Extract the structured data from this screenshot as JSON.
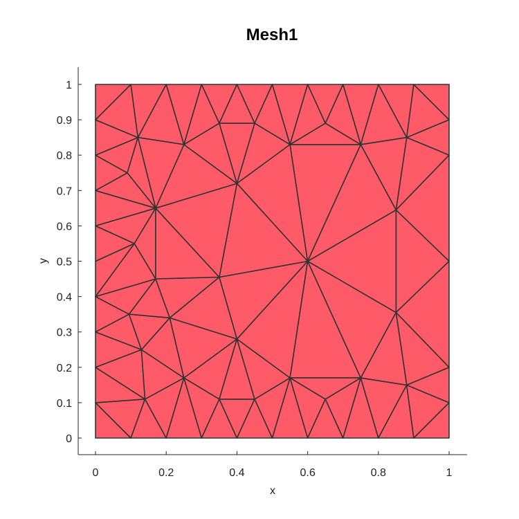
{
  "chart_data": {
    "type": "mesh",
    "title": "Mesh1",
    "xlabel": "x",
    "ylabel": "y",
    "xlim": [
      -0.05,
      1.05
    ],
    "ylim": [
      -0.05,
      1.05
    ],
    "xticks": [
      0,
      0.2,
      0.4,
      0.6,
      0.8,
      1
    ],
    "yticks": [
      0,
      0.1,
      0.2,
      0.3,
      0.4,
      0.5,
      0.6,
      0.7,
      0.8,
      0.9,
      1
    ],
    "xtick_labels": [
      "0",
      "0.2",
      "0.4",
      "0.6",
      "0.8",
      "1"
    ],
    "ytick_labels": [
      "0",
      "0.1",
      "0.2",
      "0.3",
      "0.4",
      "0.5",
      "0.6",
      "0.7",
      "0.8",
      "0.9",
      "1"
    ],
    "face_color": "#ff5a67",
    "edge_color": "#333333",
    "nodes": [
      [
        0,
        0
      ],
      [
        0.1,
        0
      ],
      [
        0.2,
        0
      ],
      [
        0.3,
        0
      ],
      [
        0.4,
        0
      ],
      [
        0.5,
        0
      ],
      [
        0.6,
        0
      ],
      [
        0.7,
        0
      ],
      [
        0.8,
        0
      ],
      [
        0.9,
        0
      ],
      [
        1,
        0
      ],
      [
        0,
        1
      ],
      [
        0.1,
        1
      ],
      [
        0.2,
        1
      ],
      [
        0.3,
        1
      ],
      [
        0.4,
        1
      ],
      [
        0.5,
        1
      ],
      [
        0.6,
        1
      ],
      [
        0.7,
        1
      ],
      [
        0.8,
        1
      ],
      [
        0.9,
        1
      ],
      [
        1,
        1
      ],
      [
        0,
        0.1
      ],
      [
        0,
        0.2
      ],
      [
        0,
        0.3
      ],
      [
        0,
        0.4
      ],
      [
        0,
        0.5
      ],
      [
        0,
        0.6
      ],
      [
        0,
        0.7
      ],
      [
        0,
        0.8
      ],
      [
        0,
        0.9
      ],
      [
        1,
        0.1
      ],
      [
        1,
        0.2
      ],
      [
        1,
        0.5
      ],
      [
        1,
        0.8
      ],
      [
        1,
        0.9
      ],
      [
        0.6,
        0.5
      ],
      [
        0.4,
        0.72
      ],
      [
        0.17,
        0.65
      ],
      [
        0.17,
        0.45
      ],
      [
        0.35,
        0.455
      ],
      [
        0.4,
        0.28
      ],
      [
        0.21,
        0.34
      ],
      [
        0.25,
        0.17
      ],
      [
        0.14,
        0.11
      ],
      [
        0.13,
        0.25
      ],
      [
        0.095,
        0.35
      ],
      [
        0.11,
        0.55
      ],
      [
        0.09,
        0.75
      ],
      [
        0.12,
        0.85
      ],
      [
        0.25,
        0.83
      ],
      [
        0.35,
        0.89
      ],
      [
        0.45,
        0.89
      ],
      [
        0.55,
        0.83
      ],
      [
        0.65,
        0.89
      ],
      [
        0.75,
        0.83
      ],
      [
        0.88,
        0.85
      ],
      [
        0.85,
        0.645
      ],
      [
        0.85,
        0.355
      ],
      [
        0.88,
        0.15
      ],
      [
        0.75,
        0.17
      ],
      [
        0.65,
        0.11
      ],
      [
        0.55,
        0.17
      ],
      [
        0.45,
        0.11
      ],
      [
        0.35,
        0.11
      ]
    ],
    "triangles": [
      [
        0,
        1,
        22
      ],
      [
        1,
        44,
        22
      ],
      [
        1,
        2,
        44
      ],
      [
        2,
        43,
        44
      ],
      [
        2,
        3,
        43
      ],
      [
        3,
        64,
        43
      ],
      [
        3,
        4,
        64
      ],
      [
        4,
        63,
        64
      ],
      [
        4,
        5,
        63
      ],
      [
        5,
        62,
        63
      ],
      [
        5,
        6,
        62
      ],
      [
        6,
        61,
        62
      ],
      [
        6,
        7,
        61
      ],
      [
        7,
        60,
        61
      ],
      [
        7,
        8,
        60
      ],
      [
        8,
        59,
        60
      ],
      [
        8,
        9,
        59
      ],
      [
        9,
        31,
        59
      ],
      [
        9,
        10,
        31
      ],
      [
        31,
        32,
        59
      ],
      [
        22,
        44,
        23
      ],
      [
        44,
        45,
        23
      ],
      [
        23,
        45,
        24
      ],
      [
        24,
        45,
        46
      ],
      [
        24,
        46,
        25
      ],
      [
        25,
        46,
        39
      ],
      [
        25,
        39,
        47
      ],
      [
        25,
        47,
        26
      ],
      [
        26,
        47,
        27
      ],
      [
        47,
        38,
        27
      ],
      [
        47,
        39,
        38
      ],
      [
        27,
        38,
        28
      ],
      [
        28,
        38,
        48
      ],
      [
        28,
        48,
        29
      ],
      [
        29,
        48,
        49
      ],
      [
        29,
        49,
        30
      ],
      [
        30,
        49,
        12
      ],
      [
        30,
        12,
        11
      ],
      [
        12,
        13,
        49
      ],
      [
        13,
        50,
        49
      ],
      [
        13,
        14,
        50
      ],
      [
        14,
        51,
        50
      ],
      [
        14,
        15,
        51
      ],
      [
        15,
        52,
        51
      ],
      [
        15,
        16,
        52
      ],
      [
        16,
        53,
        52
      ],
      [
        16,
        17,
        53
      ],
      [
        17,
        54,
        53
      ],
      [
        17,
        18,
        54
      ],
      [
        18,
        55,
        54
      ],
      [
        18,
        19,
        55
      ],
      [
        19,
        56,
        55
      ],
      [
        19,
        20,
        56
      ],
      [
        20,
        35,
        56
      ],
      [
        20,
        21,
        35
      ],
      [
        35,
        34,
        56
      ],
      [
        56,
        34,
        57
      ],
      [
        57,
        34,
        33
      ],
      [
        57,
        33,
        58
      ],
      [
        58,
        33,
        32
      ],
      [
        58,
        32,
        59
      ],
      [
        44,
        43,
        45
      ],
      [
        45,
        43,
        42
      ],
      [
        45,
        42,
        46
      ],
      [
        46,
        42,
        39
      ],
      [
        43,
        64,
        41
      ],
      [
        43,
        41,
        42
      ],
      [
        64,
        63,
        41
      ],
      [
        63,
        62,
        41
      ],
      [
        41,
        62,
        36
      ],
      [
        62,
        60,
        36
      ],
      [
        62,
        61,
        60
      ],
      [
        60,
        58,
        36
      ],
      [
        60,
        59,
        58
      ],
      [
        58,
        57,
        36
      ],
      [
        42,
        41,
        40
      ],
      [
        42,
        40,
        39
      ],
      [
        39,
        40,
        38
      ],
      [
        40,
        41,
        36
      ],
      [
        40,
        36,
        37
      ],
      [
        38,
        40,
        37
      ],
      [
        38,
        37,
        50
      ],
      [
        38,
        50,
        49
      ],
      [
        48,
        38,
        49
      ],
      [
        50,
        51,
        37
      ],
      [
        51,
        52,
        37
      ],
      [
        52,
        53,
        37
      ],
      [
        37,
        53,
        36
      ],
      [
        53,
        55,
        36
      ],
      [
        53,
        54,
        55
      ],
      [
        55,
        57,
        36
      ],
      [
        55,
        56,
        57
      ]
    ]
  }
}
